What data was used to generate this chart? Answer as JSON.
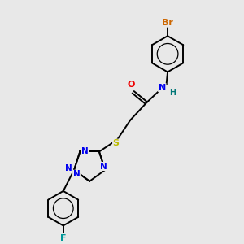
{
  "background_color": "#e8e8e8",
  "atom_colors": {
    "C": "#000000",
    "N": "#0000ee",
    "O": "#ee0000",
    "S": "#bbbb00",
    "Br": "#cc6600",
    "F": "#009999",
    "H": "#007777"
  },
  "figsize": [
    3.0,
    3.0
  ],
  "dpi": 100,
  "xlim": [
    0,
    10
  ],
  "ylim": [
    0,
    10
  ]
}
